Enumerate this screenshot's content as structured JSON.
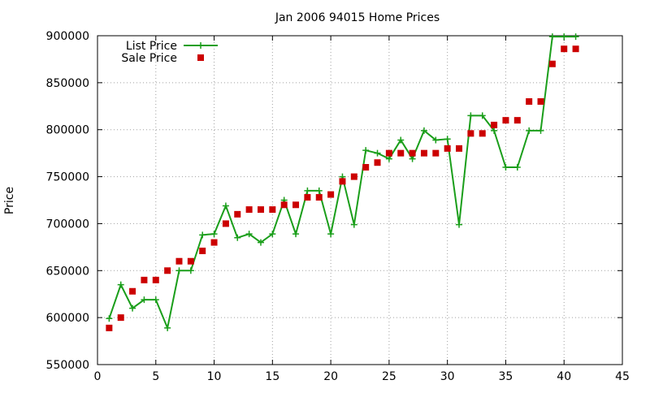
{
  "chart_data": {
    "type": "line",
    "title": "Jan 2006 94015 Home Prices",
    "xlabel": "",
    "ylabel": "Price",
    "xlim": [
      0,
      45
    ],
    "ylim": [
      550000,
      900000
    ],
    "x_ticks": [
      0,
      5,
      10,
      15,
      20,
      25,
      30,
      35,
      40,
      45
    ],
    "y_ticks": [
      550000,
      600000,
      650000,
      700000,
      750000,
      800000,
      850000,
      900000
    ],
    "grid": true,
    "legend_position": "top-left",
    "series": [
      {
        "name": "List Price",
        "style": "lines+points",
        "color": "#1a9e1a",
        "x": [
          1,
          2,
          3,
          4,
          5,
          6,
          7,
          8,
          9,
          10,
          11,
          12,
          13,
          14,
          15,
          16,
          17,
          18,
          19,
          20,
          21,
          22,
          23,
          24,
          25,
          26,
          27,
          28,
          29,
          30,
          31,
          32,
          33,
          34,
          35,
          36,
          37,
          38,
          39,
          40,
          41
        ],
        "y": [
          599000,
          635000,
          610000,
          619000,
          619000,
          589000,
          650000,
          650000,
          688000,
          689000,
          719000,
          685000,
          689000,
          680000,
          689000,
          725000,
          689000,
          735000,
          735000,
          689000,
          750000,
          699000,
          778000,
          775000,
          769000,
          789000,
          769000,
          799000,
          789000,
          790000,
          699000,
          815000,
          815000,
          799000,
          760000,
          760000,
          799000,
          799000,
          899000,
          899000,
          899000
        ]
      },
      {
        "name": "Sale Price",
        "style": "points",
        "color": "#cc0000",
        "x": [
          1,
          2,
          3,
          4,
          5,
          6,
          7,
          8,
          9,
          10,
          11,
          12,
          13,
          14,
          15,
          16,
          17,
          18,
          19,
          20,
          21,
          22,
          23,
          24,
          25,
          26,
          27,
          28,
          29,
          30,
          31,
          32,
          33,
          34,
          35,
          36,
          37,
          38,
          39,
          40,
          41
        ],
        "y": [
          589000,
          600000,
          628000,
          640000,
          640000,
          650000,
          660000,
          660000,
          671000,
          680000,
          700000,
          710000,
          715000,
          715000,
          715000,
          720000,
          720000,
          728000,
          728000,
          731000,
          745000,
          750000,
          760000,
          765000,
          775000,
          775000,
          775000,
          775000,
          775000,
          780000,
          780000,
          796000,
          796000,
          805000,
          810000,
          810000,
          830000,
          830000,
          870000,
          886000,
          886000
        ]
      }
    ]
  }
}
